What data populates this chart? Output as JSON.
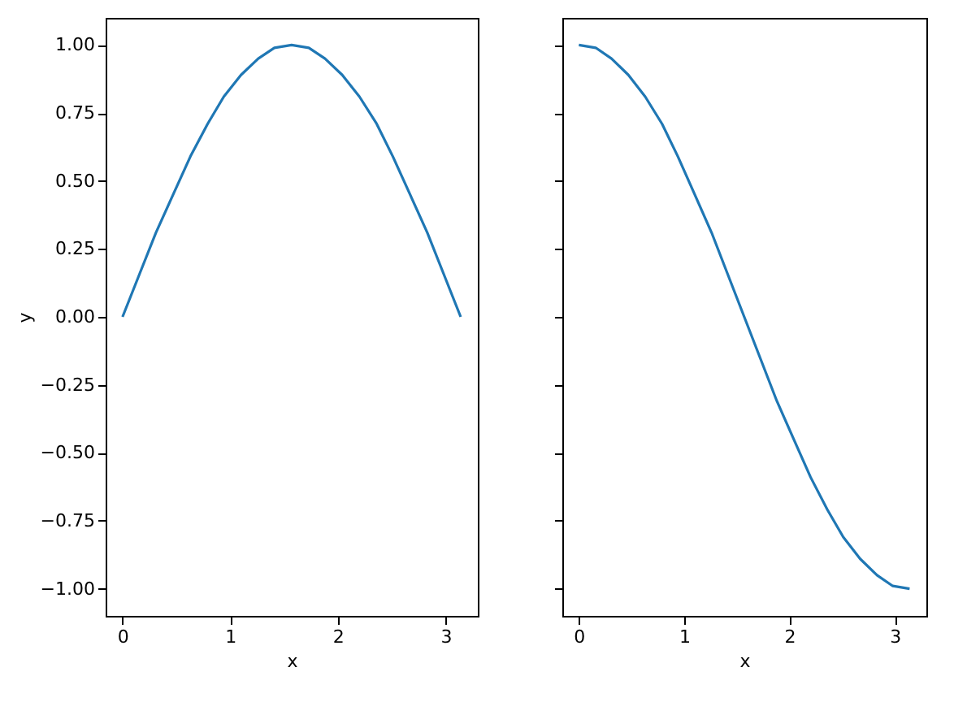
{
  "chart_data": [
    {
      "type": "line",
      "xlabel": "x",
      "ylabel": "y",
      "grid": false,
      "x": [
        0,
        0.16,
        0.31,
        0.47,
        0.63,
        0.79,
        0.94,
        1.1,
        1.26,
        1.41,
        1.57,
        1.73,
        1.88,
        2.04,
        2.2,
        2.36,
        2.51,
        2.67,
        2.83,
        2.98,
        3.14
      ],
      "series": [
        {
          "color": "#1f77b4",
          "values": [
            0,
            0.16,
            0.31,
            0.45,
            0.59,
            0.71,
            0.81,
            0.89,
            0.95,
            0.99,
            1.0,
            0.99,
            0.95,
            0.89,
            0.81,
            0.71,
            0.59,
            0.45,
            0.31,
            0.16,
            0.0
          ]
        }
      ],
      "xlim": [
        -0.157,
        3.299
      ],
      "ylim": [
        -1.1,
        1.1
      ],
      "xticks": [
        0,
        1,
        2,
        3
      ],
      "yticks": [
        {
          "value": -1,
          "label": "−1.00"
        },
        {
          "value": -0.75,
          "label": "−0.75"
        },
        {
          "value": -0.5,
          "label": "−0.50"
        },
        {
          "value": -0.25,
          "label": "−0.25"
        },
        {
          "value": 0,
          "label": "0.00"
        },
        {
          "value": 0.25,
          "label": "0.25"
        },
        {
          "value": 0.5,
          "label": "0.50"
        },
        {
          "value": 0.75,
          "label": "0.75"
        },
        {
          "value": 1,
          "label": "1.00"
        }
      ]
    },
    {
      "type": "line",
      "xlabel": "x",
      "grid": false,
      "tick_labels": "x",
      "x": [
        0,
        0.16,
        0.31,
        0.47,
        0.63,
        0.79,
        0.94,
        1.1,
        1.26,
        1.41,
        1.57,
        1.73,
        1.88,
        2.04,
        2.2,
        2.36,
        2.51,
        2.67,
        2.83,
        2.98,
        3.14
      ],
      "series": [
        {
          "color": "#1f77b4",
          "values": [
            1.0,
            0.99,
            0.95,
            0.89,
            0.81,
            0.71,
            0.59,
            0.45,
            0.31,
            0.16,
            0.0,
            -0.16,
            -0.31,
            -0.45,
            -0.59,
            -0.71,
            -0.81,
            -0.89,
            -0.95,
            -0.99,
            -1.0
          ]
        }
      ],
      "xlim": [
        -0.157,
        3.299
      ],
      "ylim": [
        -1.1,
        1.1
      ],
      "xticks": [
        0,
        1,
        2,
        3
      ],
      "yticks": [
        {
          "value": -1,
          "label": null
        },
        {
          "value": -0.75,
          "label": null
        },
        {
          "value": -0.5,
          "label": null
        },
        {
          "value": -0.25,
          "label": null
        },
        {
          "value": 0,
          "label": null
        },
        {
          "value": 0.25,
          "label": null
        },
        {
          "value": 0.5,
          "label": null
        },
        {
          "value": 0.75,
          "label": null
        },
        {
          "value": 1,
          "label": null
        }
      ]
    }
  ]
}
